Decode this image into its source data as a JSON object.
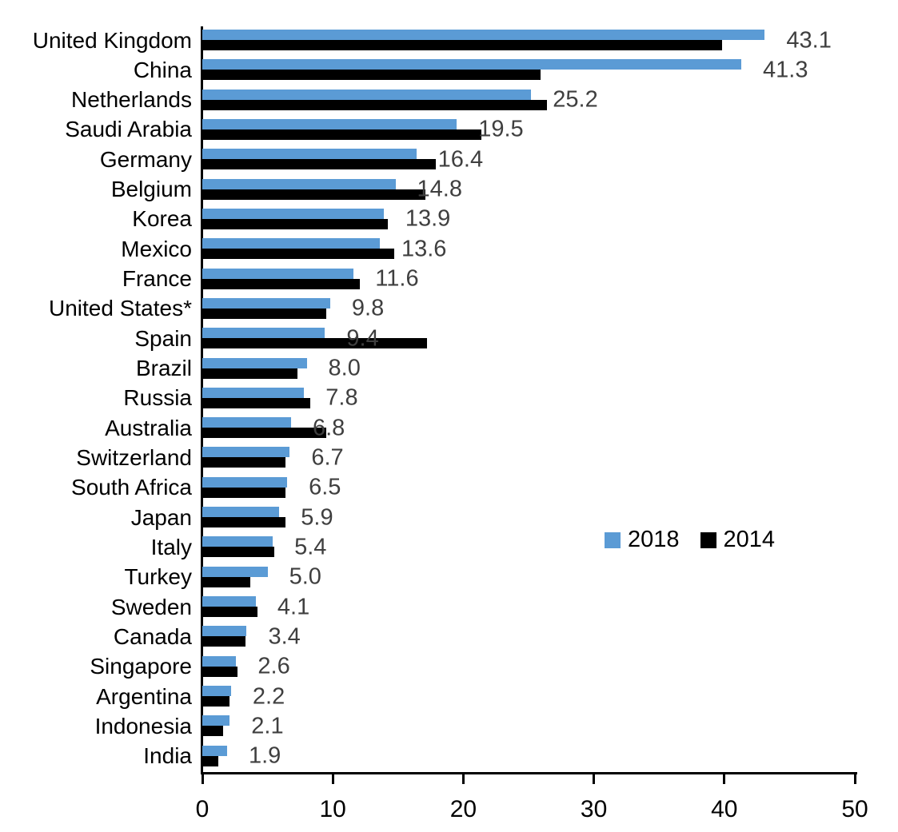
{
  "chart_data": {
    "type": "bar",
    "orientation": "horizontal",
    "title": "",
    "xlabel": "",
    "ylabel": "",
    "xlim": [
      0,
      50
    ],
    "x_ticks": [
      "0",
      "10",
      "20",
      "30",
      "40",
      "50"
    ],
    "grid": false,
    "legend_position": "middle-right",
    "value_label_color": "#3F3F3F",
    "axis_color": "#000000",
    "categories": [
      "United Kingdom",
      "China",
      "Netherlands",
      "Saudi Arabia",
      "Germany",
      "Belgium",
      "Korea",
      "Mexico",
      "France",
      "United States*",
      "Spain",
      "Brazil",
      "Russia",
      "Australia",
      "Switzerland",
      "South Africa",
      "Japan",
      "Italy",
      "Turkey",
      "Sweden",
      "Canada",
      "Singapore",
      "Argentina",
      "Indonesia",
      "India"
    ],
    "series": [
      {
        "name": "2018",
        "color": "#5B9BD5",
        "values": [
          43.1,
          41.3,
          25.2,
          19.5,
          16.4,
          14.8,
          13.9,
          13.6,
          11.6,
          9.8,
          9.4,
          8.0,
          7.8,
          6.8,
          6.7,
          6.5,
          5.9,
          5.4,
          5.0,
          4.1,
          3.4,
          2.6,
          2.2,
          2.1,
          1.9
        ],
        "data_labels": [
          "43.1",
          "41.3",
          "25.2",
          "19.5",
          "16.4",
          "14.8",
          "13.9",
          "13.6",
          "11.6",
          "9.8",
          "9.4",
          "8.0",
          "7.8",
          "6.8",
          "6.7",
          "6.5",
          "5.9",
          "5.4",
          "5.0",
          "4.1",
          "3.4",
          "2.6",
          "2.2",
          "2.1",
          "1.9"
        ]
      },
      {
        "name": "2014",
        "color": "#000000",
        "values": [
          39.8,
          25.9,
          26.4,
          21.4,
          17.9,
          17.1,
          14.2,
          14.7,
          12.1,
          9.5,
          17.2,
          7.3,
          8.3,
          9.5,
          6.4,
          6.4,
          6.4,
          5.5,
          3.7,
          4.2,
          3.3,
          2.7,
          2.1,
          1.6,
          1.2
        ]
      }
    ]
  }
}
